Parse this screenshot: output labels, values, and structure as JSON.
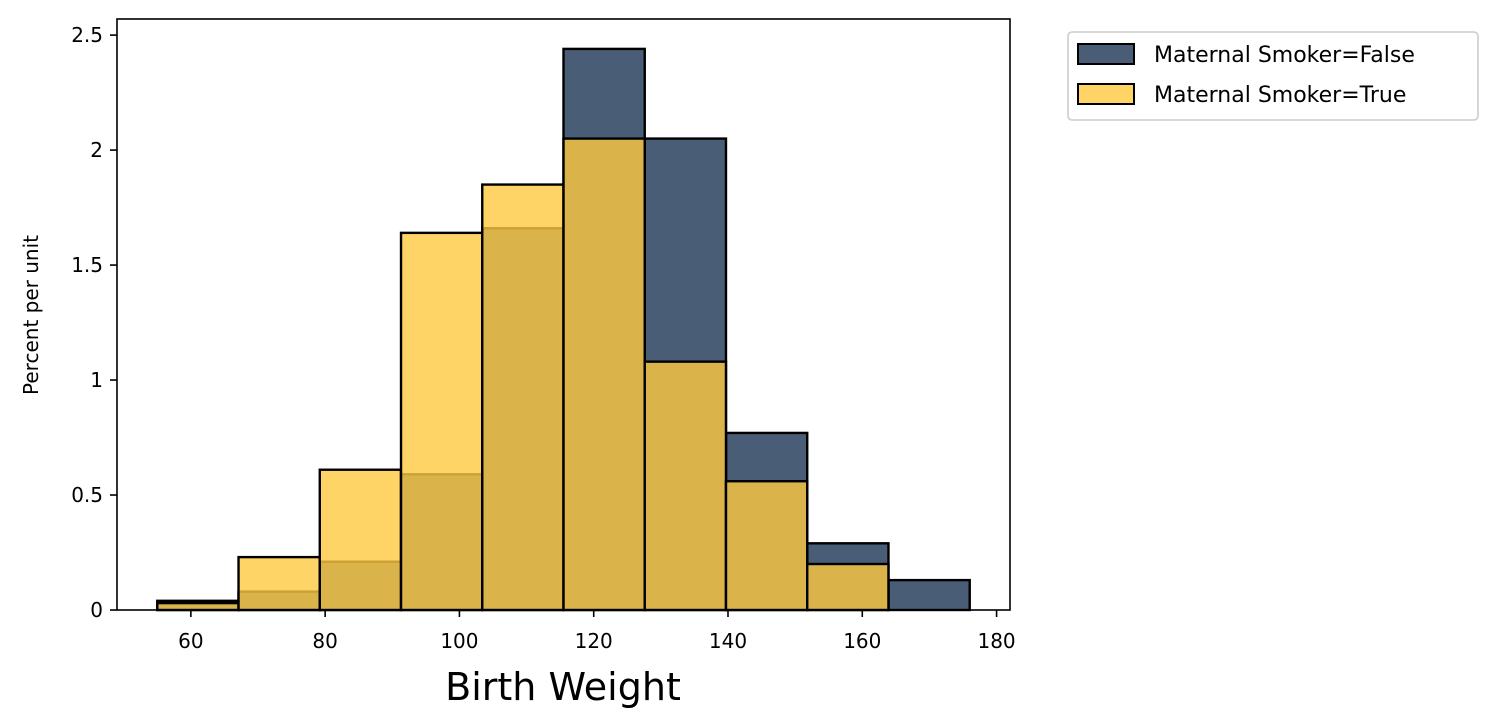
{
  "chart_data": {
    "type": "bar",
    "histogram": true,
    "bin_edges": [
      55,
      67.1,
      79.2,
      91.3,
      103.4,
      115.5,
      127.6,
      139.7,
      151.8,
      163.9,
      176
    ],
    "series": [
      {
        "name": "Maternal Smoker=False",
        "values": [
          0.04,
          0.08,
          0.21,
          0.59,
          1.66,
          2.44,
          2.05,
          0.77,
          0.29,
          0.13
        ],
        "color": "#1b3555",
        "opacity": 0.8
      },
      {
        "name": "Maternal Smoker=True",
        "values": [
          0.03,
          0.23,
          0.61,
          1.64,
          1.85,
          2.05,
          1.08,
          0.56,
          0.2,
          0
        ],
        "color": "#ffc940",
        "opacity": 0.8
      }
    ],
    "xlabel": "Birth Weight",
    "ylabel": "Percent per unit",
    "xlim": [
      49,
      182
    ],
    "ylim": [
      0,
      2.57
    ],
    "xticks": [
      "60",
      "80",
      "100",
      "120",
      "140",
      "160",
      "180"
    ],
    "xtick_values": [
      60,
      80,
      100,
      120,
      140,
      160,
      180
    ],
    "yticks": [
      "0",
      "0.5",
      "1",
      "1.5",
      "2",
      "2.5"
    ],
    "ytick_values": [
      0,
      0.5,
      1,
      1.5,
      2,
      2.5
    ],
    "legend": "outside-top-right",
    "grid": false
  }
}
